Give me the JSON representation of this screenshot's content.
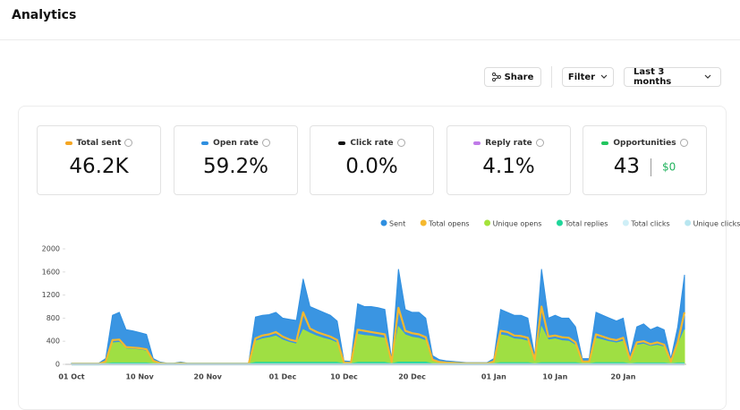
{
  "header": {
    "title": "Analytics"
  },
  "toolbar": {
    "share": "Share",
    "filter": "Filter",
    "range": "Last 3 months"
  },
  "stats": [
    {
      "label": "Total sent",
      "value": "46.2K",
      "color": "#f5a623"
    },
    {
      "label": "Open rate",
      "value": "59.2%",
      "color": "#2f8fe0"
    },
    {
      "label": "Click rate",
      "value": "0.0%",
      "color": "#111111"
    },
    {
      "label": "Reply rate",
      "value": "4.1%",
      "color": "#c07be8"
    },
    {
      "label": "Opportunities",
      "value": "43",
      "extra": "$0",
      "color": "#22c55e"
    }
  ],
  "chart_data": {
    "type": "area",
    "categories": [
      "01 Oct",
      null,
      null,
      null,
      null,
      null,
      null,
      null,
      null,
      null,
      "10 Nov",
      null,
      null,
      null,
      null,
      null,
      null,
      null,
      null,
      null,
      "20 Nov",
      null,
      null,
      null,
      null,
      null,
      null,
      null,
      null,
      null,
      null,
      "01 Dec",
      null,
      null,
      null,
      null,
      null,
      null,
      null,
      null,
      "10 Dec",
      null,
      null,
      null,
      null,
      null,
      null,
      null,
      null,
      null,
      "20 Dec",
      null,
      null,
      null,
      null,
      null,
      null,
      null,
      null,
      null,
      null,
      null,
      "01 Jan",
      null,
      null,
      null,
      null,
      null,
      null,
      null,
      null,
      "10 Jan",
      null,
      null,
      null,
      null,
      null,
      null,
      null,
      null,
      null,
      "20 Jan",
      null,
      null,
      null,
      null,
      null,
      null,
      null,
      null,
      null
    ],
    "ylim": [
      0,
      2000
    ],
    "yticks": [
      0,
      400,
      800,
      1200,
      1600,
      2000
    ],
    "series": [
      {
        "name": "Sent",
        "color": "#2f8fe0",
        "style": "area",
        "values": [
          20,
          20,
          20,
          20,
          20,
          100,
          850,
          900,
          600,
          580,
          550,
          520,
          100,
          40,
          20,
          20,
          40,
          20,
          20,
          20,
          20,
          20,
          20,
          20,
          20,
          20,
          20,
          820,
          850,
          860,
          900,
          800,
          780,
          760,
          1480,
          1000,
          950,
          900,
          850,
          750,
          60,
          50,
          1050,
          1000,
          1000,
          980,
          950,
          80,
          1650,
          950,
          900,
          900,
          800,
          150,
          80,
          60,
          50,
          40,
          30,
          30,
          30,
          30,
          100,
          950,
          900,
          850,
          850,
          800,
          150,
          1650,
          800,
          850,
          800,
          800,
          650,
          100,
          100,
          900,
          850,
          800,
          750,
          800,
          150,
          650,
          700,
          600,
          650,
          600,
          100,
          650,
          1550
        ]
      },
      {
        "name": "Total opens",
        "color": "#f5b82e",
        "style": "line",
        "values": [
          10,
          10,
          10,
          10,
          10,
          50,
          420,
          430,
          300,
          290,
          280,
          260,
          60,
          20,
          10,
          10,
          20,
          10,
          10,
          10,
          10,
          10,
          10,
          10,
          10,
          10,
          10,
          450,
          500,
          520,
          560,
          480,
          430,
          400,
          900,
          620,
          560,
          520,
          480,
          420,
          30,
          25,
          600,
          580,
          560,
          540,
          520,
          40,
          980,
          580,
          540,
          520,
          470,
          80,
          40,
          30,
          25,
          20,
          15,
          15,
          15,
          15,
          50,
          580,
          560,
          500,
          490,
          460,
          80,
          1000,
          480,
          500,
          470,
          460,
          380,
          50,
          50,
          520,
          480,
          440,
          420,
          460,
          80,
          380,
          400,
          350,
          380,
          340,
          50,
          380,
          900
        ]
      },
      {
        "name": "Unique opens",
        "color": "#a4e33a",
        "style": "area",
        "values": [
          8,
          8,
          8,
          8,
          8,
          40,
          370,
          380,
          270,
          260,
          250,
          230,
          50,
          15,
          8,
          8,
          15,
          8,
          8,
          8,
          8,
          8,
          8,
          8,
          8,
          8,
          8,
          400,
          440,
          460,
          490,
          420,
          380,
          350,
          600,
          540,
          490,
          450,
          420,
          370,
          25,
          20,
          520,
          500,
          490,
          470,
          450,
          35,
          650,
          510,
          470,
          450,
          410,
          70,
          35,
          25,
          20,
          15,
          12,
          12,
          12,
          12,
          40,
          510,
          490,
          440,
          430,
          400,
          70,
          650,
          420,
          440,
          410,
          400,
          330,
          40,
          40,
          450,
          420,
          390,
          370,
          400,
          70,
          330,
          350,
          310,
          330,
          300,
          40,
          330,
          600
        ]
      },
      {
        "name": "Total replies",
        "color": "#1fd69a",
        "style": "line",
        "values": [
          0,
          0,
          0,
          0,
          0,
          5,
          15,
          15,
          15,
          15,
          15,
          15,
          2,
          2,
          2,
          2,
          2,
          2,
          2,
          2,
          2,
          2,
          2,
          2,
          2,
          2,
          2,
          25,
          25,
          25,
          25,
          25,
          25,
          25,
          25,
          25,
          25,
          25,
          25,
          25,
          3,
          3,
          25,
          25,
          25,
          25,
          25,
          3,
          30,
          30,
          30,
          30,
          30,
          3,
          3,
          3,
          3,
          3,
          3,
          3,
          3,
          3,
          3,
          20,
          20,
          20,
          20,
          20,
          3,
          20,
          20,
          20,
          20,
          20,
          20,
          3,
          3,
          20,
          20,
          20,
          20,
          20,
          3,
          15,
          15,
          15,
          15,
          15,
          3,
          15,
          15
        ]
      },
      {
        "name": "Total clicks",
        "color": "#cfeff7",
        "style": "line",
        "values": [
          0,
          0,
          0,
          0,
          0,
          0,
          0,
          0,
          0,
          0,
          0,
          0,
          0,
          0,
          0,
          0,
          0,
          0,
          0,
          0,
          0,
          0,
          0,
          0,
          0,
          0,
          0,
          0,
          0,
          0,
          0,
          0,
          0,
          0,
          0,
          0,
          0,
          0,
          0,
          0,
          0,
          0,
          0,
          0,
          0,
          0,
          0,
          0,
          0,
          0,
          0,
          0,
          0,
          0,
          0,
          0,
          0,
          0,
          0,
          0,
          0,
          0,
          0,
          0,
          0,
          0,
          0,
          0,
          0,
          0,
          0,
          0,
          0,
          0,
          0,
          0,
          0,
          0,
          0,
          0,
          0,
          0,
          0,
          0,
          0,
          0,
          0,
          0,
          0,
          0,
          0
        ]
      },
      {
        "name": "Unique clicks",
        "color": "#b8e6f0",
        "style": "line",
        "values": [
          0,
          0,
          0,
          0,
          0,
          0,
          0,
          0,
          0,
          0,
          0,
          0,
          0,
          0,
          0,
          0,
          0,
          0,
          0,
          0,
          0,
          0,
          0,
          0,
          0,
          0,
          0,
          0,
          0,
          0,
          0,
          0,
          0,
          0,
          0,
          0,
          0,
          0,
          0,
          0,
          0,
          0,
          0,
          0,
          0,
          0,
          0,
          0,
          0,
          0,
          0,
          0,
          0,
          0,
          0,
          0,
          0,
          0,
          0,
          0,
          0,
          0,
          0,
          0,
          0,
          0,
          0,
          0,
          0,
          0,
          0,
          0,
          0,
          0,
          0,
          0,
          0,
          0,
          0,
          0,
          0,
          0,
          0,
          0,
          0,
          0,
          0,
          0,
          0,
          0,
          0
        ]
      }
    ]
  }
}
